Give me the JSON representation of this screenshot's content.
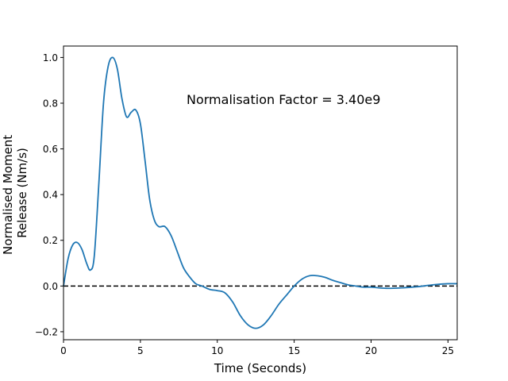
{
  "chart_data": {
    "type": "line",
    "xlabel": "Time (Seconds)",
    "ylabel_lines": [
      "Normalised Moment",
      "Release (Nm/s)"
    ],
    "annotation": "Normalisation Factor = 3.40e9",
    "xlim": [
      0,
      25.6
    ],
    "ylim": [
      -0.235,
      1.05
    ],
    "xticks": [
      0,
      5,
      10,
      15,
      20,
      25
    ],
    "xtick_labels": [
      "0",
      "5",
      "10",
      "15",
      "20",
      "25"
    ],
    "yticks": [
      -0.2,
      0.0,
      0.2,
      0.4,
      0.6,
      0.8,
      1.0
    ],
    "ytick_labels": [
      "−0.2",
      "0.0",
      "0.2",
      "0.4",
      "0.6",
      "0.8",
      "1.0"
    ],
    "grid": false,
    "series": [
      {
        "color": "#1f77b4",
        "x": [
          0,
          0.3,
          0.6,
          0.9,
          1.2,
          1.5,
          1.75,
          2.0,
          2.3,
          2.6,
          2.9,
          3.2,
          3.5,
          3.8,
          4.1,
          4.4,
          4.7,
          5.0,
          5.3,
          5.6,
          5.9,
          6.2,
          6.6,
          7.0,
          7.4,
          7.8,
          8.2,
          8.6,
          9.0,
          9.5,
          10.0,
          10.5,
          11.0,
          11.5,
          12.0,
          12.5,
          13.0,
          13.5,
          14.0,
          14.5,
          15.0,
          15.5,
          16.0,
          16.5,
          17.0,
          17.5,
          18.0,
          18.5,
          19.0,
          19.5,
          20.0,
          21.0,
          22.0,
          23.0,
          24.0,
          25.0,
          25.6
        ],
        "y": [
          0.0,
          0.12,
          0.18,
          0.19,
          0.16,
          0.1,
          0.07,
          0.13,
          0.45,
          0.8,
          0.96,
          1.0,
          0.95,
          0.82,
          0.74,
          0.76,
          0.77,
          0.71,
          0.55,
          0.38,
          0.29,
          0.26,
          0.26,
          0.22,
          0.15,
          0.08,
          0.04,
          0.01,
          0.0,
          -0.015,
          -0.02,
          -0.03,
          -0.07,
          -0.13,
          -0.17,
          -0.185,
          -0.17,
          -0.13,
          -0.08,
          -0.04,
          0.0,
          0.03,
          0.045,
          0.045,
          0.038,
          0.025,
          0.015,
          0.005,
          0.0,
          -0.005,
          -0.005,
          -0.01,
          -0.008,
          -0.003,
          0.005,
          0.01,
          0.01
        ]
      }
    ],
    "reference_line": {
      "y": 0.0,
      "style": "dashed",
      "color": "#000000"
    }
  }
}
